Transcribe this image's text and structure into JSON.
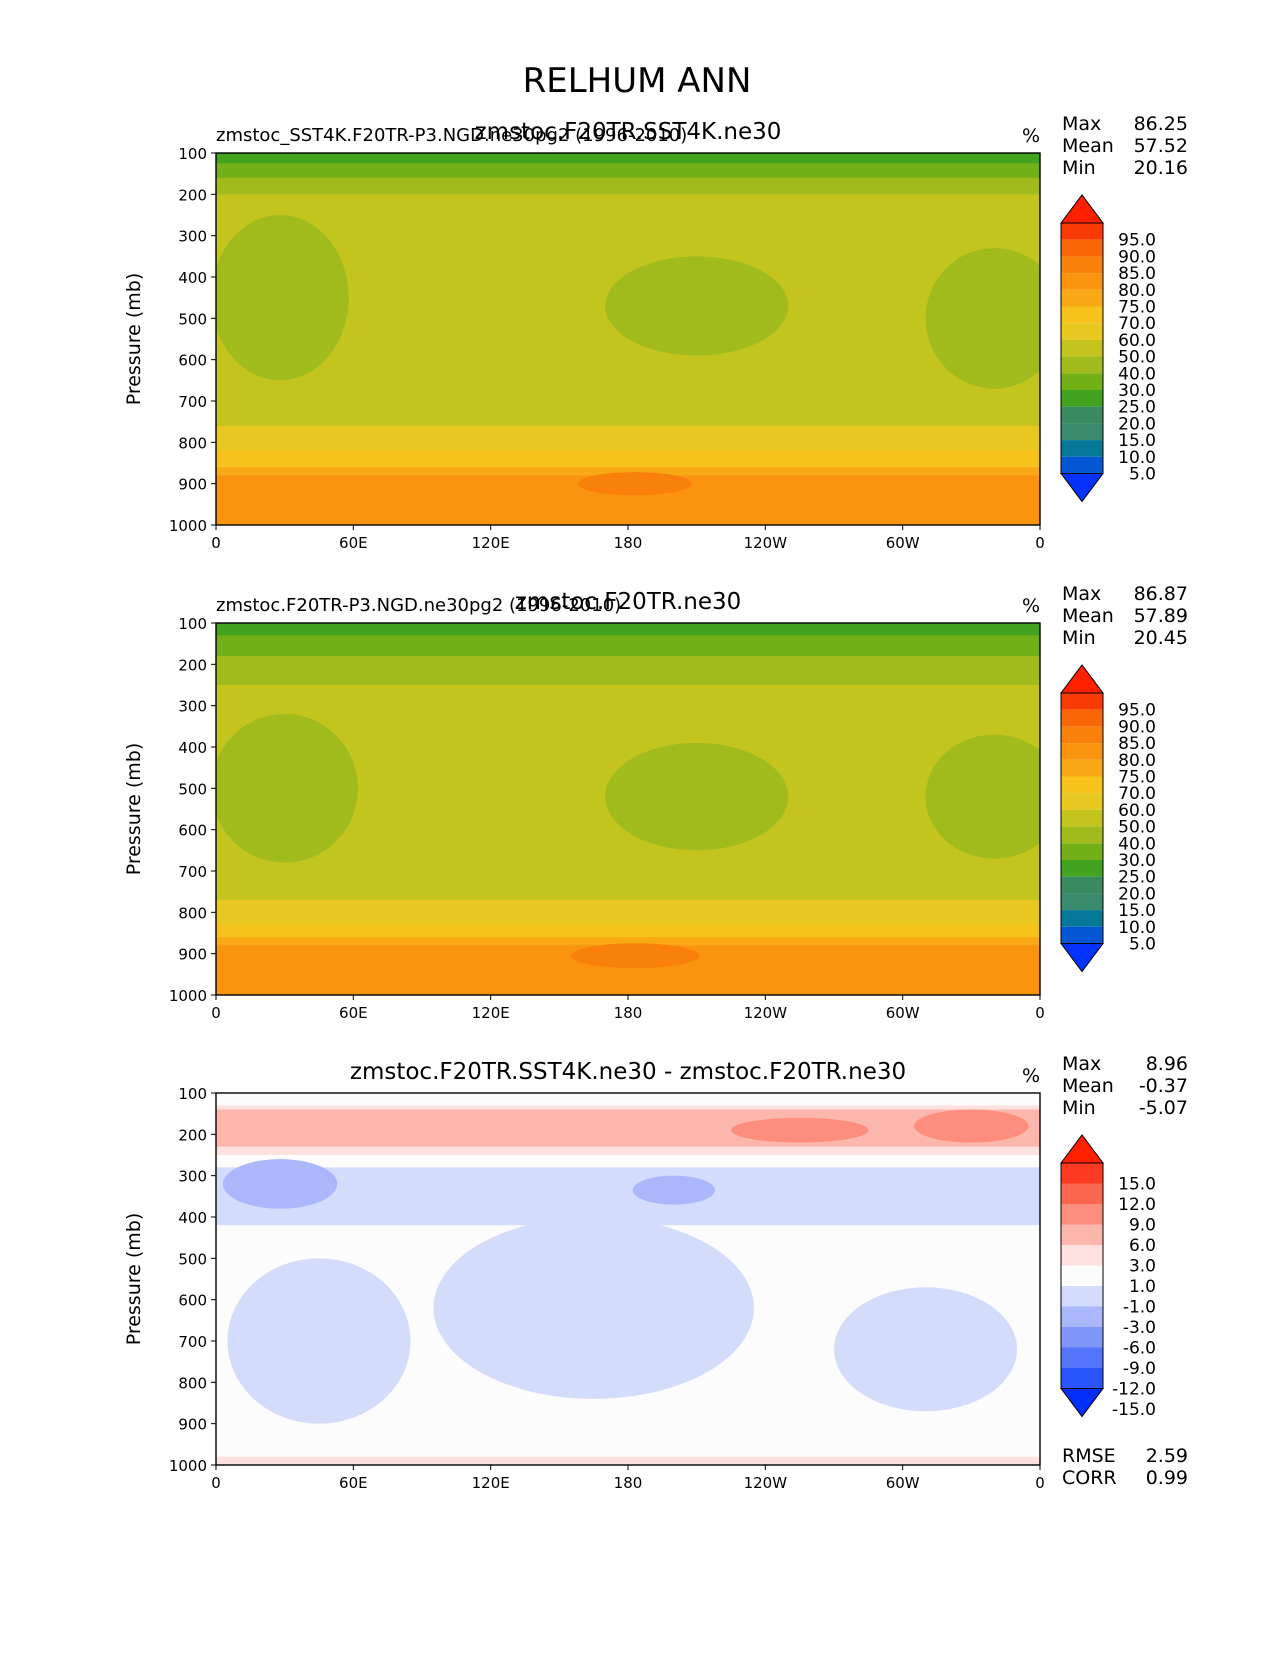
{
  "figure": {
    "title": "RELHUM ANN"
  },
  "colors": {
    "abs_colors": [
      "#0332fa",
      "#0556d4",
      "#047896",
      "#3a8a6e",
      "#3a8a60",
      "#41a31f",
      "#74b018",
      "#a1ba1c",
      "#c4c41f",
      "#e8c820",
      "#f8c21d",
      "#f9a915",
      "#fa940f",
      "#f9800a",
      "#fa6605",
      "#fa3a04",
      "#ff2000"
    ],
    "abs_levels": [
      "5.0",
      "10.0",
      "15.0",
      "20.0",
      "25.0",
      "30.0",
      "40.0",
      "50.0",
      "60.0",
      "70.0",
      "75.0",
      "80.0",
      "85.0",
      "90.0",
      "95.0"
    ],
    "diff_colors": [
      "#0030fa",
      "#2a55fb",
      "#5475fb",
      "#8096fb",
      "#aab8fb",
      "#d4dcfc",
      "#fcfcfc",
      "#fde1de",
      "#fcb7ac",
      "#fd8e7d",
      "#fb6651",
      "#fd3a22",
      "#ff2000"
    ],
    "diff_levels": [
      "-15.0",
      "-12.0",
      "-9.0",
      "-6.0",
      "-3.0",
      "-1.0",
      "1.0",
      "3.0",
      "6.0",
      "9.0",
      "12.0",
      "15.0"
    ]
  },
  "chart_data": [
    {
      "type": "contour",
      "left_title": "zmstoc_SST4K.F20TR-P3.NGD.ne30pg2 (1996-2010)",
      "center_title": "zmstoc.F20TR.SST4K.ne30",
      "units": "%",
      "stats": {
        "max_label": "Max",
        "max": "86.25",
        "mean_label": "Mean",
        "mean": "57.52",
        "min_label": "Min",
        "min": "20.16"
      },
      "ylabel": "Pressure (mb)",
      "xticks": [
        "0",
        "60E",
        "120E",
        "180",
        "120W",
        "60W",
        "0"
      ],
      "yticks": [
        "100",
        "200",
        "300",
        "400",
        "500",
        "600",
        "700",
        "800",
        "900",
        "1000"
      ],
      "ylim": [
        100,
        1000
      ],
      "xlim": [
        0,
        360
      ],
      "bands": [
        {
          "level": 8,
          "y1": 100,
          "y2": 1000,
          "color_index": 8
        },
        {
          "level": 7,
          "y1": 100,
          "y2": 200,
          "color_index": 7
        },
        {
          "level": 6,
          "y1": 100,
          "y2": 160,
          "color_index": 6
        },
        {
          "level": 5,
          "y1": 100,
          "y2": 125,
          "color_index": 5
        },
        {
          "level": 9,
          "y1": 760,
          "y2": 1000,
          "color_index": 9
        },
        {
          "level": 10,
          "y1": 820,
          "y2": 1000,
          "color_index": 10
        },
        {
          "level": 11,
          "y1": 860,
          "y2": 1000,
          "color_index": 11
        },
        {
          "level": 12,
          "y1": 880,
          "y2": 1000,
          "color_index": 12
        }
      ],
      "blobs": [
        {
          "x": 28,
          "p": 450,
          "rx": 30,
          "rp": 200,
          "color_index": 7
        },
        {
          "x": 210,
          "p": 470,
          "rx": 40,
          "rp": 120,
          "color_index": 7
        },
        {
          "x": 340,
          "p": 500,
          "rx": 30,
          "rp": 170,
          "color_index": 7
        },
        {
          "x": 183,
          "p": 900,
          "rx": 25,
          "rp": 28,
          "color_index": 13
        }
      ],
      "rmse": null,
      "corr": null
    },
    {
      "type": "contour",
      "left_title": "zmstoc.F20TR-P3.NGD.ne30pg2 (1996-2010)",
      "center_title": "zmstoc.F20TR.ne30",
      "units": "%",
      "stats": {
        "max_label": "Max",
        "max": "86.87",
        "mean_label": "Mean",
        "mean": "57.89",
        "min_label": "Min",
        "min": "20.45"
      },
      "ylabel": "Pressure (mb)",
      "xticks": [
        "0",
        "60E",
        "120E",
        "180",
        "120W",
        "60W",
        "0"
      ],
      "yticks": [
        "100",
        "200",
        "300",
        "400",
        "500",
        "600",
        "700",
        "800",
        "900",
        "1000"
      ],
      "ylim": [
        100,
        1000
      ],
      "xlim": [
        0,
        360
      ],
      "bands": [
        {
          "level": 8,
          "y1": 100,
          "y2": 1000,
          "color_index": 8
        },
        {
          "level": 7,
          "y1": 100,
          "y2": 250,
          "color_index": 7
        },
        {
          "level": 6,
          "y1": 100,
          "y2": 180,
          "color_index": 6
        },
        {
          "level": 5,
          "y1": 100,
          "y2": 130,
          "color_index": 5
        },
        {
          "level": 9,
          "y1": 770,
          "y2": 1000,
          "color_index": 9
        },
        {
          "level": 10,
          "y1": 830,
          "y2": 1000,
          "color_index": 10
        },
        {
          "level": 11,
          "y1": 860,
          "y2": 1000,
          "color_index": 11
        },
        {
          "level": 12,
          "y1": 880,
          "y2": 1000,
          "color_index": 12
        }
      ],
      "blobs": [
        {
          "x": 30,
          "p": 500,
          "rx": 32,
          "rp": 180,
          "color_index": 7
        },
        {
          "x": 210,
          "p": 520,
          "rx": 40,
          "rp": 130,
          "color_index": 7
        },
        {
          "x": 340,
          "p": 520,
          "rx": 30,
          "rp": 150,
          "color_index": 7
        },
        {
          "x": 183,
          "p": 905,
          "rx": 28,
          "rp": 30,
          "color_index": 13
        }
      ],
      "rmse": null,
      "corr": null
    },
    {
      "type": "contour",
      "left_title": "",
      "center_title": "zmstoc.F20TR.SST4K.ne30 - zmstoc.F20TR.ne30",
      "units": "%",
      "stats": {
        "max_label": "Max",
        "max": "8.96",
        "mean_label": "Mean",
        "mean": "-0.37",
        "min_label": "Min",
        "min": "-5.07"
      },
      "ylabel": "Pressure (mb)",
      "xticks": [
        "0",
        "60E",
        "120E",
        "180",
        "120W",
        "60W",
        "0"
      ],
      "yticks": [
        "100",
        "200",
        "300",
        "400",
        "500",
        "600",
        "700",
        "800",
        "900",
        "1000"
      ],
      "ylim": [
        100,
        1000
      ],
      "xlim": [
        0,
        360
      ],
      "bands": [
        {
          "level": 6,
          "y1": 100,
          "y2": 1000,
          "color_index": 6
        },
        {
          "level": 7,
          "y1": 130,
          "y2": 250,
          "color_index": 7
        },
        {
          "level": 8,
          "y1": 140,
          "y2": 230,
          "color_index": 8
        },
        {
          "level": 5,
          "y1": 280,
          "y2": 420,
          "color_index": 5
        },
        {
          "level": 7,
          "y1": 980,
          "y2": 1000,
          "color_index": 7
        }
      ],
      "blobs": [
        {
          "x": 165,
          "p": 620,
          "rx": 70,
          "rp": 220,
          "color_index": 5
        },
        {
          "x": 45,
          "p": 700,
          "rx": 40,
          "rp": 200,
          "color_index": 5
        },
        {
          "x": 310,
          "p": 720,
          "rx": 40,
          "rp": 150,
          "color_index": 5
        },
        {
          "x": 28,
          "p": 320,
          "rx": 25,
          "rp": 60,
          "color_index": 4
        },
        {
          "x": 200,
          "p": 335,
          "rx": 18,
          "rp": 35,
          "color_index": 4
        },
        {
          "x": 255,
          "p": 190,
          "rx": 30,
          "rp": 30,
          "color_index": 9
        },
        {
          "x": 330,
          "p": 180,
          "rx": 25,
          "rp": 40,
          "color_index": 9
        }
      ],
      "rmse_label": "RMSE",
      "rmse": "2.59",
      "corr_label": "CORR",
      "corr": "0.99"
    }
  ]
}
